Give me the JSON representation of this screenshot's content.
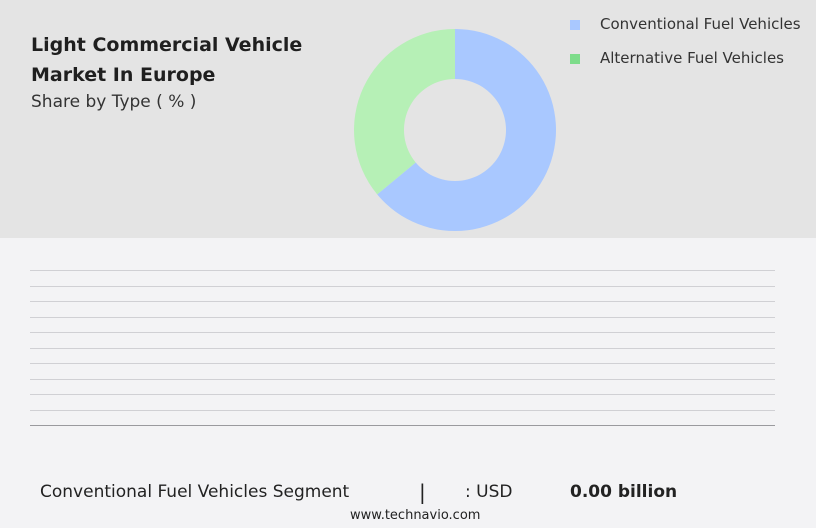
{
  "header": {
    "title": "Light Commercial Vehicle Market In Europe",
    "subtitle": "Share by Type ( % )"
  },
  "chart_data": {
    "type": "pie",
    "categories": [
      "Conventional Fuel Vehicles",
      "Alternative Fuel Vehicles"
    ],
    "values": [
      64,
      36
    ],
    "colors": [
      "#a9c8ff",
      "#b6f0b6"
    ],
    "legend_colors": [
      "#a9c8ff",
      "#7ddc8a"
    ],
    "legend_position": "top-right"
  },
  "footer": {
    "segment_label": "Conventional Fuel Vehicles Segment",
    "divider": "|",
    "currency": ": USD",
    "value": "0.00 billion",
    "website": "www.technavio.com"
  }
}
